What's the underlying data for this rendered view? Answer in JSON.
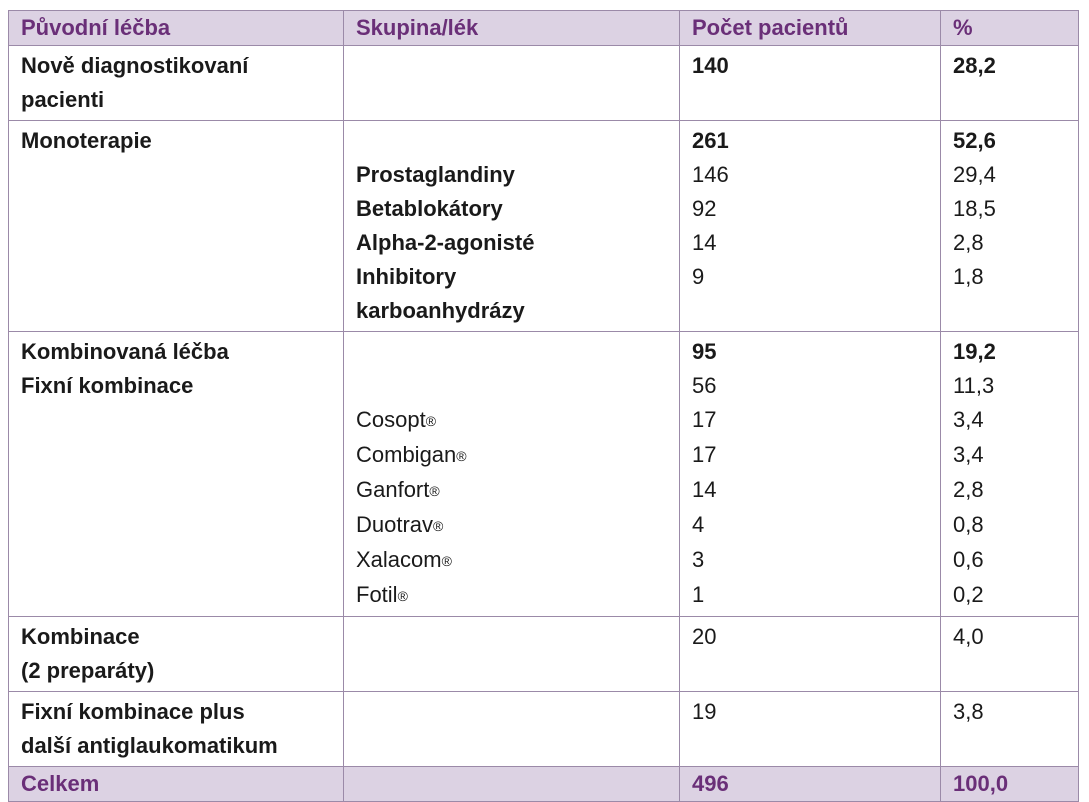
{
  "header": {
    "col1": "Původní léčba",
    "col2": "Skupina/lék",
    "col3": "Počet pacientů",
    "col4": "%"
  },
  "rows": {
    "new_diag": {
      "label_line1": "Nově diagnostikovaní",
      "label_line2": "pacienti",
      "count": "140",
      "pct": "28,2"
    },
    "mono": {
      "label": "Monoterapie",
      "count": "261",
      "pct": "52,6"
    },
    "prostaglandiny": {
      "drug": "Prostaglandiny",
      "count": "146",
      "pct": "29,4"
    },
    "betablokatory": {
      "drug": "Betablokátory",
      "count": "92",
      "pct": "18,5"
    },
    "alpha2": {
      "drug": "Alpha-2-agonisté",
      "count": "14",
      "pct": "2,8"
    },
    "inhibitory": {
      "drug_line1": "Inhibitory",
      "drug_line2": "karboanhydrázy",
      "count": "9",
      "pct": "1,8"
    },
    "kombinovana": {
      "label": "Kombinovaná léčba",
      "count": "95",
      "pct": "19,2"
    },
    "fixni": {
      "label": "Fixní kombinace",
      "count": "56",
      "pct": "11,3"
    },
    "cosopt": {
      "drug": "Cosopt",
      "count": "17",
      "pct": "3,4"
    },
    "combigan": {
      "drug": "Combigan",
      "count": "17",
      "pct": "3,4"
    },
    "ganfort": {
      "drug": "Ganfort",
      "count": "14",
      "pct": "2,8"
    },
    "duotrav": {
      "drug": "Duotrav",
      "count": "4",
      "pct": "0,8"
    },
    "xalacom": {
      "drug": "Xalacom",
      "count": "3",
      "pct": "0,6"
    },
    "fotil": {
      "drug": "Fotil",
      "count": "1",
      "pct": "0,2"
    },
    "kombinace2": {
      "label_line1": "Kombinace",
      "label_line2": "(2 preparáty)",
      "count": "20",
      "pct": "4,0"
    },
    "fixni_plus": {
      "label_line1": "Fixní kombinace plus",
      "label_line2": "další antiglaukomatikum",
      "count": "19",
      "pct": "3,8"
    }
  },
  "footer": {
    "label": "Celkem",
    "count": "496",
    "pct": "100,0"
  },
  "registered_mark": "®",
  "colors": {
    "header_bg": "#dcd2e3",
    "header_text": "#6a2f78",
    "border": "#9b8aa8"
  }
}
